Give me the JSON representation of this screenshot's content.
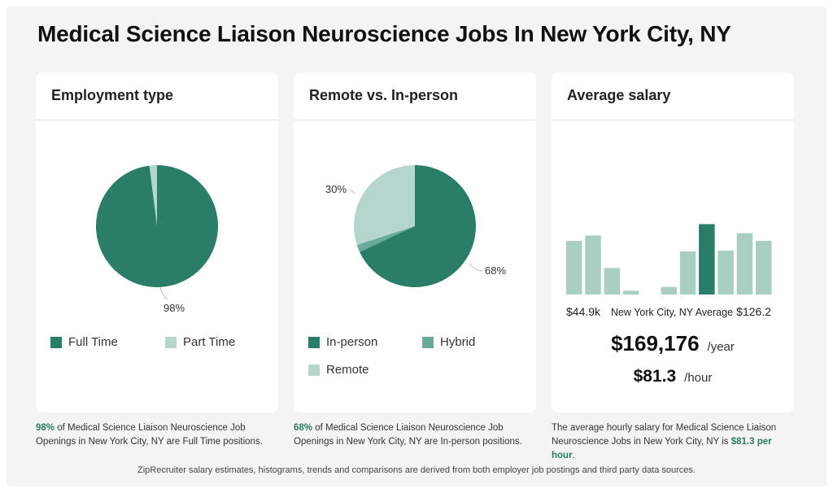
{
  "title": "Medical Science Liaison Neuroscience Jobs In New York City, NY",
  "colors": {
    "dark": "#2a7d66",
    "mid": "#6aaa98",
    "light": "#b5d6cc",
    "hist": "#a9cfc3"
  },
  "employment": {
    "title": "Employment type",
    "legend": [
      "Full Time",
      "Part Time"
    ],
    "label_main": "98%",
    "caption_pct": "98%",
    "caption_text": " of Medical Science Liaison Neuroscience Job Openings in New York City, NY are Full Time positions."
  },
  "remote": {
    "title": "Remote vs. In-person",
    "legend": [
      "In-person",
      "Hybrid",
      "Remote"
    ],
    "label_main": "68%",
    "label_remote": "30%",
    "caption_pct": "68%",
    "caption_text": " of Medical Science Liaison Neuroscience Job Openings in New York City, NY are In-person positions."
  },
  "salary": {
    "title": "Average salary",
    "min_label": "$44.9k",
    "avg_label": "New York City, NY Average",
    "max_label": "$126.2",
    "yearly": "$169,176",
    "yearly_unit": "/year",
    "hourly": "$81.3",
    "hourly_unit": "/hour",
    "caption_text": "The average hourly salary for Medical Science Liaison Neuroscience Jobs in New York City, NY is ",
    "caption_value": "$81.3 per hour",
    "caption_end": "."
  },
  "footer": "ZipRecruiter salary estimates, histograms, trends and comparisons are derived from both employer job postings and third party data sources.",
  "chart_data": [
    {
      "type": "pie",
      "title": "Employment type",
      "labels": [
        "Full Time",
        "Part Time"
      ],
      "values": [
        98,
        2
      ]
    },
    {
      "type": "pie",
      "title": "Remote vs. In-person",
      "labels": [
        "In-person",
        "Hybrid",
        "Remote"
      ],
      "values": [
        68,
        2,
        30
      ]
    },
    {
      "type": "bar",
      "title": "Average salary",
      "categories": [
        "1",
        "2",
        "3",
        "4",
        "5",
        "6",
        "7",
        "8",
        "9",
        "10",
        "11"
      ],
      "values": [
        71,
        78,
        35,
        5,
        0,
        10,
        57,
        93,
        58,
        81,
        71
      ],
      "highlight_index": 7,
      "ylim": [
        0,
        100
      ]
    }
  ]
}
